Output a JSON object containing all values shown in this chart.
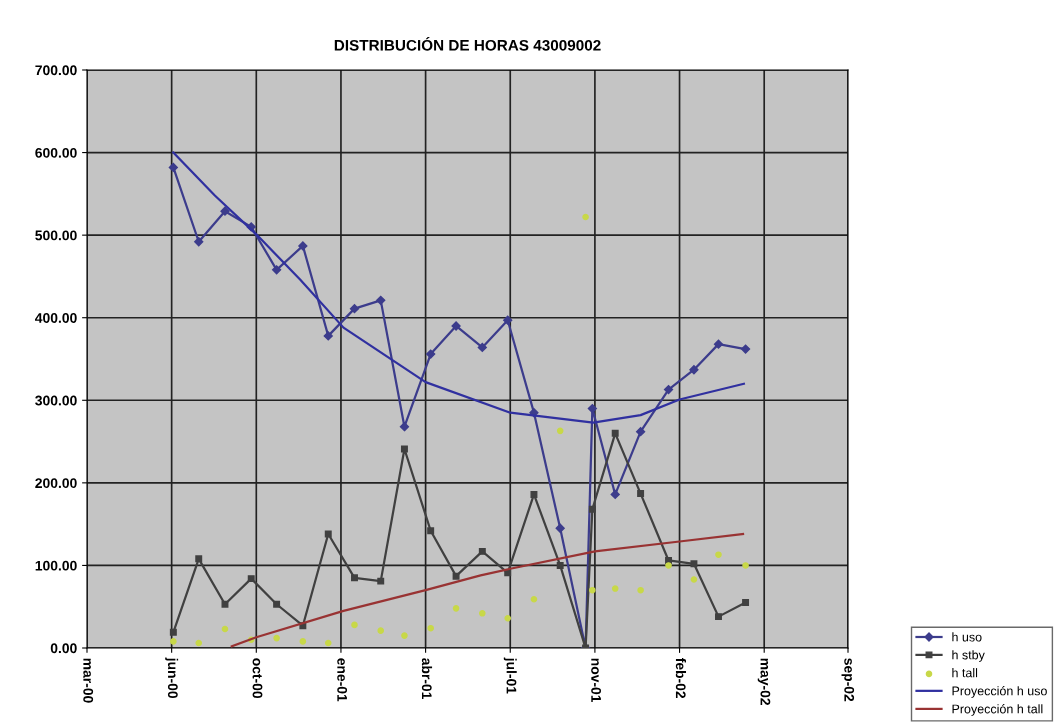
{
  "chart_data": {
    "type": "line",
    "title": "DISTRIBUCIÓN DE HORAS 43009002",
    "x": [
      "2000-06-27",
      "2000-07-27",
      "2000-08-27",
      "2000-09-27",
      "2000-10-27",
      "2000-11-27",
      "2000-12-27",
      "2001-01-27",
      "2001-02-27",
      "2001-03-27",
      "2001-04-27",
      "2001-05-27",
      "2001-06-27",
      "2001-07-27",
      "2001-08-27",
      "2001-09-27",
      "2001-10-27",
      "2001-11-04",
      "2001-12-01",
      "2001-12-31",
      "2002-02-02",
      "2002-03-04",
      "2002-04-02",
      "2002-05-04"
    ],
    "series": [
      {
        "name": "h uso",
        "color": "#3c3c8c",
        "marker": "diamond",
        "values": [
          582,
          492,
          529,
          510,
          458,
          487,
          378,
          411,
          421,
          268,
          356,
          390,
          364,
          397,
          285,
          145,
          0,
          290,
          186,
          262,
          313,
          337,
          368,
          362
        ]
      },
      {
        "name": "h stby",
        "color": "#404040",
        "marker": "square",
        "values": [
          19,
          108,
          53,
          84,
          53,
          27,
          138,
          85,
          81,
          241,
          142,
          87,
          117,
          91,
          186,
          100,
          0,
          168,
          260,
          187,
          106,
          102,
          38,
          55
        ]
      },
      {
        "name": "h tall",
        "type": "scatter",
        "color": "#c8d848",
        "marker": "circle",
        "values": [
          8,
          6,
          23,
          10,
          12,
          8,
          6,
          28,
          21,
          15,
          24,
          48,
          42,
          36,
          59,
          263,
          522,
          70,
          72,
          70,
          100,
          83,
          113,
          100
        ]
      },
      {
        "name": "Proyección h uso",
        "color": "#3030a0",
        "marker": "none",
        "x": [
          "2000-06-27",
          "2000-08-15",
          "2000-10-03",
          "2000-11-24",
          "2001-01-14",
          "2001-04-21",
          "2001-07-30",
          "2001-11-05",
          "2001-12-31",
          "2002-02-15",
          "2002-05-02"
        ],
        "values": [
          600,
          548,
          501,
          446,
          388,
          322,
          285,
          273,
          282,
          301,
          320
        ]
      },
      {
        "name": "Proyección h tall",
        "color": "#993333",
        "marker": "none",
        "x": [
          "2000-09-04",
          "2000-10-03",
          "2001-01-14",
          "2001-04-21",
          "2001-06-25",
          "2001-07-30",
          "2001-11-07",
          "2002-02-15",
          "2002-05-01"
        ],
        "values": [
          2,
          13,
          45,
          70,
          88,
          96,
          117,
          129,
          138
        ]
      }
    ],
    "xlim": [
      "2000-03-17",
      "2002-09-02"
    ],
    "xticks": [
      {
        "value": "2000-03-17",
        "label": "mar-00"
      },
      {
        "value": "2000-06-25",
        "label": "jun-00"
      },
      {
        "value": "2000-10-03",
        "label": "oct-00"
      },
      {
        "value": "2001-01-11",
        "label": "ene-01"
      },
      {
        "value": "2001-04-21",
        "label": "abr-01"
      },
      {
        "value": "2001-07-30",
        "label": "jul-01"
      },
      {
        "value": "2001-11-07",
        "label": "nov-01"
      },
      {
        "value": "2002-02-15",
        "label": "feb-02"
      },
      {
        "value": "2002-05-26",
        "label": "may-02"
      },
      {
        "value": "2002-09-02",
        "label": "sep-02"
      }
    ],
    "ylim": [
      0,
      700
    ],
    "yticks": [
      {
        "value": 0,
        "label": "0.00"
      },
      {
        "value": 100,
        "label": "100.00"
      },
      {
        "value": 200,
        "label": "200.00"
      },
      {
        "value": 300,
        "label": "300.00"
      },
      {
        "value": 400,
        "label": "400.00"
      },
      {
        "value": 500,
        "label": "500.00"
      },
      {
        "value": 600,
        "label": "600.00"
      },
      {
        "value": 700,
        "label": "700.00"
      }
    ],
    "grid": true,
    "legend": "bottom right"
  }
}
